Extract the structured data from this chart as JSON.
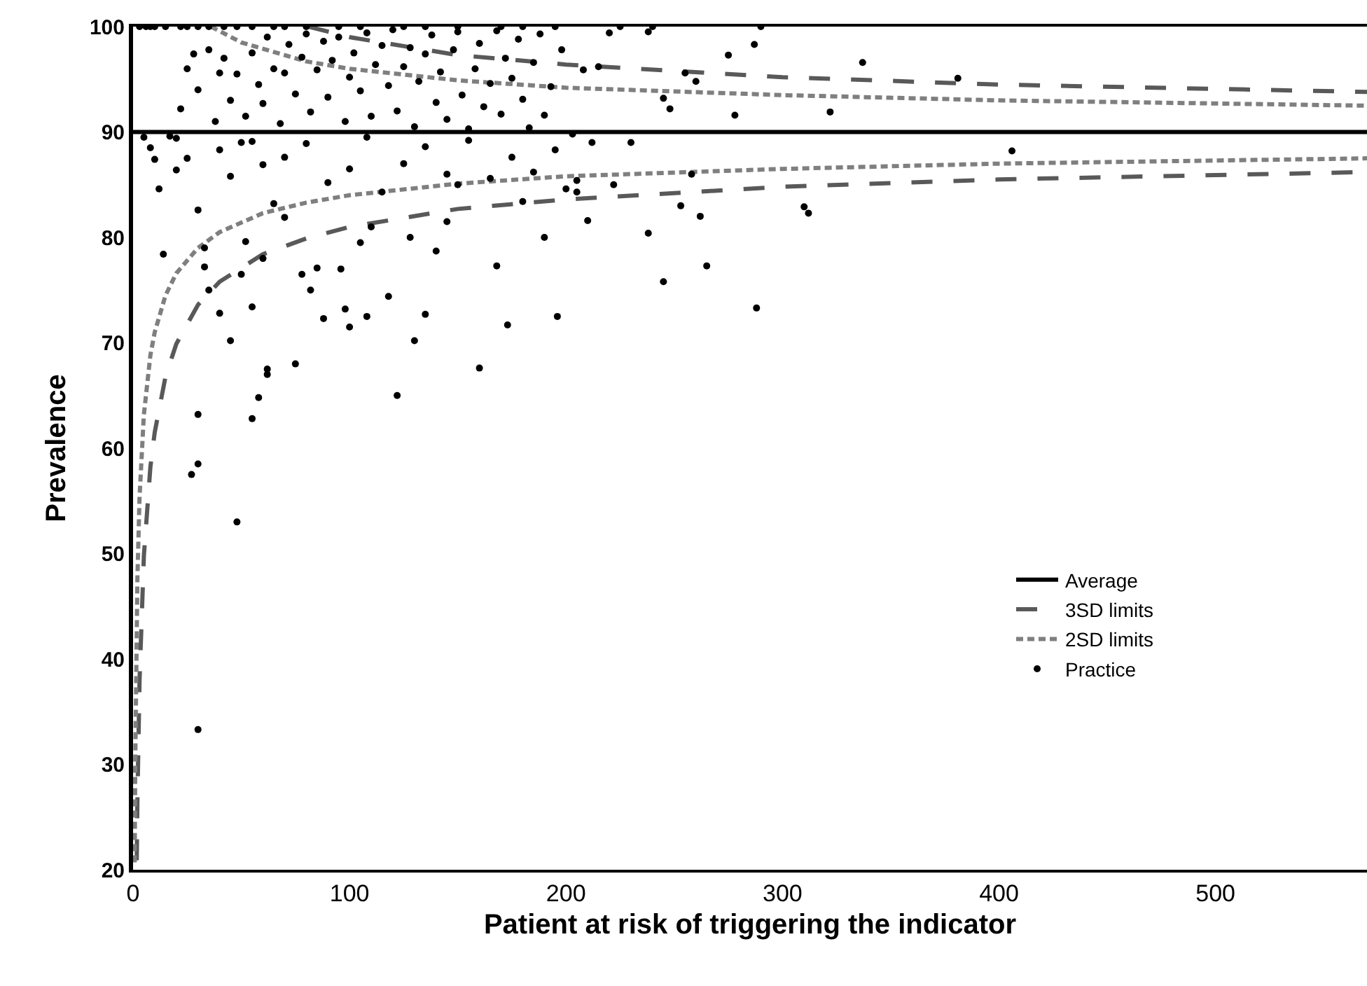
{
  "chart_data": {
    "type": "scatter",
    "xlabel": "Patient at risk of triggering the indicator",
    "ylabel": "Prevalence",
    "xlim": [
      0,
      570
    ],
    "xticks": [
      0,
      100,
      200,
      300,
      400,
      500
    ],
    "ylim": [
      20,
      100
    ],
    "yticks": [
      20,
      30,
      40,
      50,
      60,
      70,
      80,
      90,
      100
    ],
    "grid": false,
    "legend": "bottom right",
    "marker": "circle",
    "series": [
      {
        "name": "Average",
        "type": "line",
        "color": "#000000",
        "line_style": "solid",
        "marker": "none",
        "x": [
          0,
          570
        ],
        "values": [
          90,
          90
        ]
      },
      {
        "name": "3SD limits",
        "type": "line",
        "color": "#595959",
        "line_style": "dashed",
        "marker": "none",
        "x": [
          1.7,
          2,
          3,
          5,
          8,
          10,
          15,
          20,
          30,
          40,
          60,
          80,
          100,
          150,
          200,
          300,
          400,
          570
        ],
        "values": [
          20.9,
          26.4,
          38,
          49.8,
          58.2,
          61.5,
          66.8,
          69.9,
          73.6,
          75.8,
          78.4,
          79.9,
          81,
          82.7,
          83.6,
          84.8,
          85.5,
          86.2
        ]
      },
      {
        "type": "line",
        "color": "#595959",
        "line_style": "dashed",
        "marker": "none",
        "x": [
          81,
          100,
          150,
          200,
          300,
          400,
          570
        ],
        "values": [
          100,
          99,
          97.3,
          96.4,
          95.2,
          94.5,
          93.8
        ]
      },
      {
        "name": "2SD limits",
        "type": "line",
        "color": "#7f7f7f",
        "line_style": "dotted",
        "marker": "none",
        "x": [
          0.75,
          1,
          2,
          3,
          5,
          8,
          10,
          15,
          20,
          30,
          40,
          60,
          80,
          100,
          150,
          200,
          300,
          400,
          570
        ],
        "values": [
          20.7,
          30,
          47.6,
          55.4,
          63.2,
          68.8,
          71,
          74.5,
          76.6,
          79,
          80.5,
          82.3,
          83.3,
          84,
          85.1,
          85.8,
          86.5,
          87,
          87.5
        ]
      },
      {
        "type": "line",
        "color": "#7f7f7f",
        "line_style": "dotted",
        "marker": "none",
        "x": [
          36,
          50,
          80,
          100,
          150,
          200,
          300,
          400,
          570
        ],
        "values": [
          100,
          98.5,
          96.7,
          96,
          94.9,
          94.2,
          93.5,
          93,
          92.5
        ]
      },
      {
        "name": "Practice",
        "color": "#000000",
        "x": [
          30,
          48,
          27,
          30,
          30,
          55,
          58,
          62,
          62,
          75,
          122,
          160,
          196,
          288,
          245,
          265,
          310,
          312,
          406,
          222,
          238,
          253,
          258,
          262,
          130,
          100,
          108,
          135,
          140,
          168,
          173,
          190,
          210,
          10,
          12,
          14,
          30,
          33,
          33,
          35,
          40,
          45,
          50,
          52,
          55,
          60,
          65,
          70,
          78,
          82,
          85,
          88,
          96,
          98,
          105,
          110,
          118,
          128,
          145,
          150,
          180,
          200,
          205,
          212,
          8,
          5,
          3,
          6,
          8,
          10,
          15,
          22,
          25,
          30,
          35,
          42,
          48,
          55,
          65,
          70,
          80,
          95,
          105,
          125,
          135,
          150,
          170,
          180,
          195,
          225,
          240,
          290,
          17,
          20,
          22,
          25,
          28,
          30,
          35,
          38,
          40,
          42,
          45,
          48,
          50,
          52,
          55,
          58,
          60,
          62,
          65,
          68,
          70,
          72,
          75,
          78,
          80,
          82,
          85,
          88,
          90,
          92,
          95,
          98,
          100,
          102,
          105,
          108,
          110,
          112,
          115,
          118,
          120,
          122,
          125,
          128,
          130,
          132,
          135,
          138,
          140,
          142,
          145,
          148,
          150,
          152,
          155,
          158,
          160,
          162,
          165,
          168,
          170,
          172,
          175,
          178,
          180,
          183,
          185,
          188,
          190,
          193,
          198,
          203,
          208,
          215,
          220,
          238,
          245,
          248,
          255,
          260,
          275,
          278,
          287,
          322,
          337,
          381,
          20,
          25,
          40,
          45,
          55,
          60,
          70,
          80,
          90,
          100,
          108,
          115,
          125,
          135,
          145,
          155,
          165,
          175,
          185,
          195,
          205,
          230
        ],
        "values": [
          33.3,
          53,
          57.5,
          58.5,
          63.2,
          62.8,
          64.8,
          67,
          67.5,
          68,
          65,
          67.6,
          72.5,
          73.3,
          75.8,
          77.3,
          82.9,
          82.3,
          88.2,
          85,
          80.4,
          83,
          86,
          82,
          70.2,
          71.5,
          72.5,
          72.7,
          78.7,
          77.3,
          71.7,
          80,
          81.6,
          87.4,
          84.6,
          78.4,
          82.6,
          79,
          77.2,
          75,
          72.8,
          70.2,
          76.5,
          79.6,
          73.4,
          78,
          83.2,
          81.9,
          76.5,
          75,
          77.1,
          72.3,
          77,
          73.2,
          79.5,
          81,
          74.4,
          80,
          81.5,
          85,
          83.4,
          84.6,
          85.4,
          89,
          88.5,
          89.5,
          100,
          100,
          100,
          100,
          100,
          100,
          100,
          100,
          100,
          100,
          100,
          100,
          100,
          100,
          100,
          100,
          100,
          100,
          100,
          100,
          100,
          100,
          100,
          100,
          100,
          100,
          89.6,
          89.4,
          92.2,
          96,
          97.4,
          94,
          97.8,
          91,
          95.6,
          97,
          93,
          95.5,
          89,
          91.5,
          97.5,
          94.5,
          92.7,
          99,
          96,
          90.8,
          95.6,
          98.3,
          93.6,
          97.1,
          99.3,
          91.9,
          95.9,
          98.6,
          93.3,
          96.8,
          99,
          91,
          95.2,
          97.5,
          93.9,
          99.4,
          91.5,
          96.4,
          98.2,
          94.4,
          99.7,
          92,
          96.2,
          98,
          90.5,
          94.8,
          97.4,
          99.2,
          92.8,
          95.7,
          91.2,
          97.8,
          99.5,
          93.5,
          90.3,
          96,
          98.4,
          92.4,
          94.6,
          99.6,
          91.7,
          97,
          95.1,
          98.8,
          93.1,
          90.4,
          96.6,
          99.3,
          91.6,
          94.3,
          97.8,
          89.8,
          95.9,
          96.2,
          99.4,
          99.5,
          93.2,
          92.2,
          95.6,
          94.8,
          97.3,
          91.6,
          98.3,
          91.9,
          96.6,
          95.1,
          86.4,
          87.5,
          88.3,
          85.8,
          89.1,
          86.9,
          87.6,
          88.9,
          85.2,
          86.5,
          89.5,
          84.3,
          87,
          88.6,
          86,
          89.2,
          85.6,
          87.6,
          86.2,
          88.3,
          84.3,
          89
        ]
      }
    ]
  }
}
